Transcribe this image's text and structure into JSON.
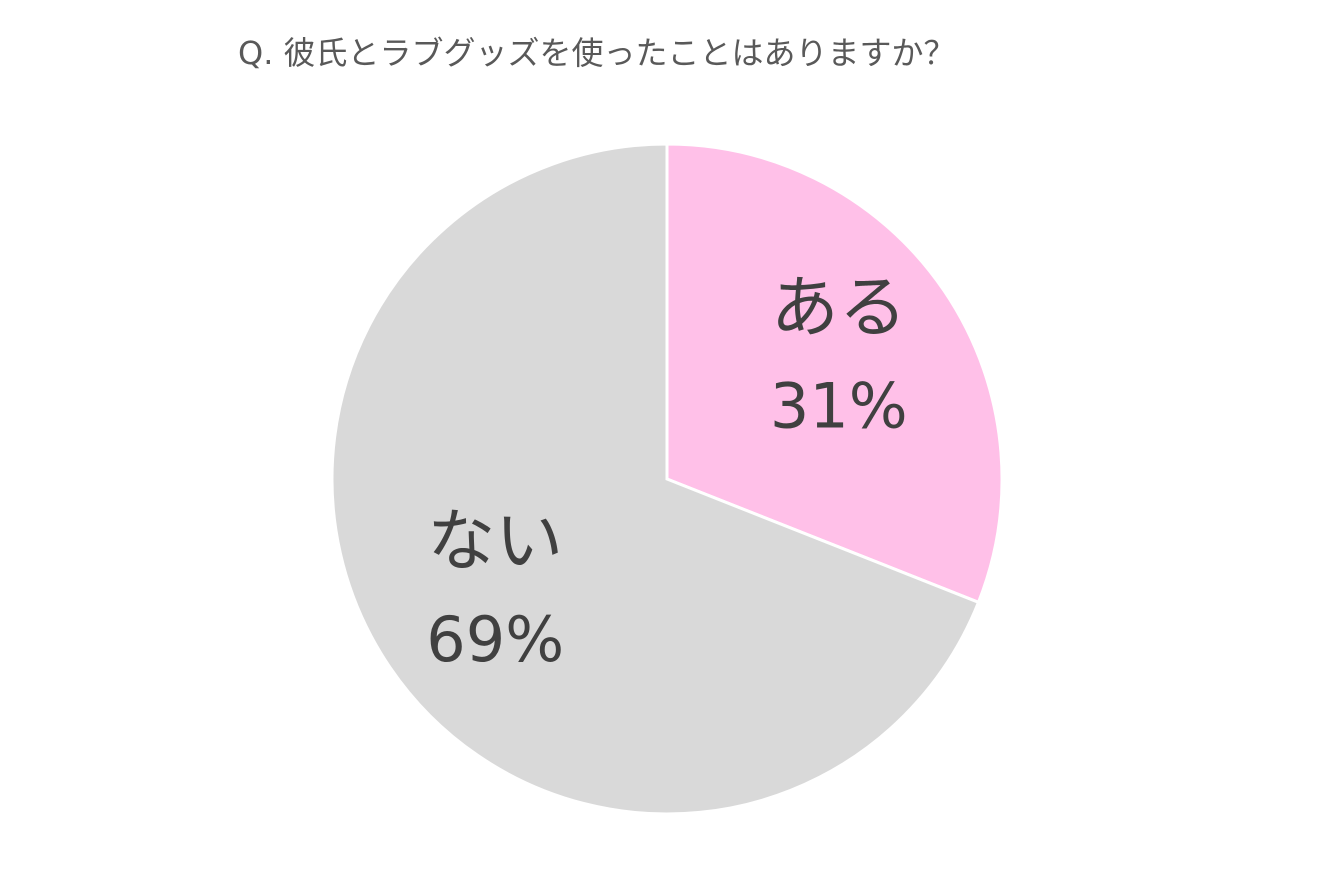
{
  "chart_data": {
    "type": "pie",
    "title": "Q. 彼氏とラブグッズを使ったことはありますか？",
    "categories": [
      "ある",
      "ない"
    ],
    "values": [
      31,
      69
    ],
    "value_labels": [
      "31%",
      "69%"
    ],
    "colors": [
      "#ffc0e8",
      "#d9d9d9"
    ]
  }
}
